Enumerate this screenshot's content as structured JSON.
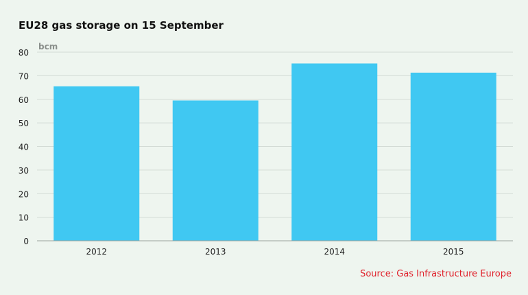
{
  "chart_data": {
    "type": "bar",
    "title": "EU28 gas storage on 15 September",
    "unit_label": "bcm",
    "categories": [
      "2012",
      "2013",
      "2014",
      "2015"
    ],
    "values": [
      65.5,
      59.5,
      75.2,
      71.3
    ],
    "ylim": [
      0,
      80
    ],
    "yticks": [
      0,
      10,
      20,
      30,
      40,
      50,
      60,
      70,
      80
    ],
    "grid": true,
    "bar_color": "#40c8f2",
    "source": "Source: Gas Infrastructure Europe"
  },
  "colors": {
    "background": "#eef5ef",
    "grid": "#d3dbd5",
    "axis": "#9aa29c",
    "source_text": "#e0202a"
  }
}
